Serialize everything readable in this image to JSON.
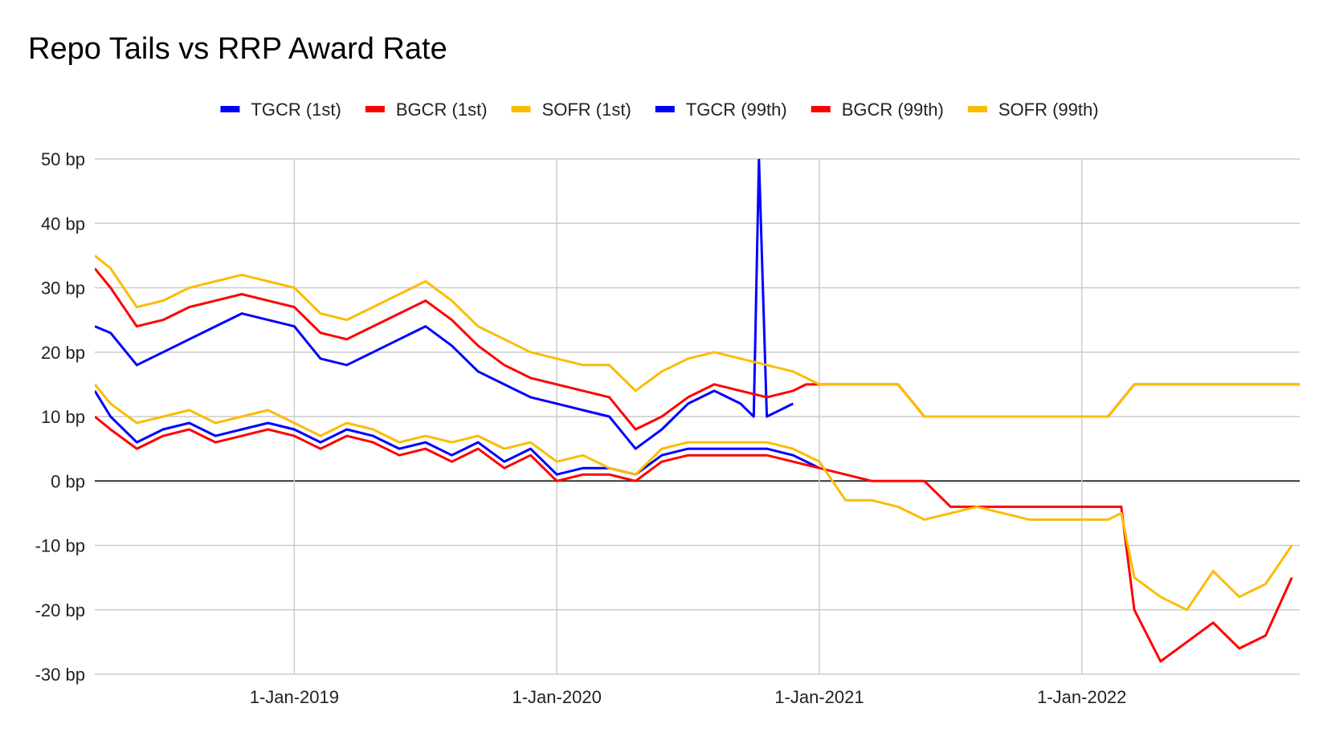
{
  "chart_data": {
    "type": "line",
    "title": "Repo Tails vs RRP Award Rate",
    "xlabel": "",
    "ylabel": "",
    "ylim": [
      -30,
      50
    ],
    "yticks": [
      -30,
      -20,
      -10,
      0,
      10,
      20,
      30,
      40,
      50
    ],
    "ytick_labels": [
      "-30 bp",
      "-20 bp",
      "-10 bp",
      "0 bp",
      "10 bp",
      "20 bp",
      "30 bp",
      "40 bp",
      "50 bp"
    ],
    "xlim": [
      2018.24,
      2022.83
    ],
    "xticks": [
      2019.0,
      2020.0,
      2021.0,
      2022.0
    ],
    "xtick_labels": [
      "1-Jan-2019",
      "1-Jan-2020",
      "1-Jan-2021",
      "1-Jan-2022"
    ],
    "grid": true,
    "legend_position": "top",
    "series": [
      {
        "name": "TGCR (1st)",
        "color": "#0000ff",
        "x": [
          2018.24,
          2018.3,
          2018.4,
          2018.5,
          2018.6,
          2018.7,
          2018.8,
          2018.9,
          2019.0,
          2019.1,
          2019.2,
          2019.3,
          2019.4,
          2019.5,
          2019.6,
          2019.7,
          2019.8,
          2019.9,
          2020.0,
          2020.1,
          2020.2,
          2020.3,
          2020.4,
          2020.5,
          2020.6,
          2020.7,
          2020.8,
          2020.9,
          2021.0
        ],
        "values": [
          14,
          10,
          6,
          8,
          9,
          7,
          8,
          9,
          8,
          6,
          8,
          7,
          5,
          6,
          4,
          6,
          3,
          5,
          1,
          2,
          2,
          1,
          4,
          5,
          5,
          5,
          5,
          4,
          2
        ]
      },
      {
        "name": "BGCR (1st)",
        "color": "#ff0000",
        "x": [
          2018.24,
          2018.3,
          2018.4,
          2018.5,
          2018.6,
          2018.7,
          2018.8,
          2018.9,
          2019.0,
          2019.1,
          2019.2,
          2019.3,
          2019.4,
          2019.5,
          2019.6,
          2019.7,
          2019.8,
          2019.9,
          2020.0,
          2020.1,
          2020.2,
          2020.3,
          2020.4,
          2020.5,
          2020.6,
          2020.7,
          2020.8,
          2020.9,
          2021.0,
          2021.1,
          2021.2,
          2021.3,
          2021.4,
          2021.5,
          2021.6,
          2021.7,
          2021.8,
          2021.9,
          2022.0,
          2022.1,
          2022.15,
          2022.2,
          2022.3,
          2022.4,
          2022.5,
          2022.6,
          2022.7,
          2022.8
        ],
        "values": [
          10,
          8,
          5,
          7,
          8,
          6,
          7,
          8,
          7,
          5,
          7,
          6,
          4,
          5,
          3,
          5,
          2,
          4,
          0,
          1,
          1,
          0,
          3,
          4,
          4,
          4,
          4,
          3,
          2,
          1,
          0,
          0,
          0,
          -4,
          -4,
          -4,
          -4,
          -4,
          -4,
          -4,
          -4,
          -20,
          -28,
          -25,
          -22,
          -26,
          -24,
          -15
        ]
      },
      {
        "name": "SOFR (1st)",
        "color": "#fbbc04",
        "x": [
          2018.24,
          2018.3,
          2018.4,
          2018.5,
          2018.6,
          2018.7,
          2018.8,
          2018.9,
          2019.0,
          2019.1,
          2019.2,
          2019.3,
          2019.4,
          2019.5,
          2019.6,
          2019.7,
          2019.8,
          2019.9,
          2020.0,
          2020.1,
          2020.2,
          2020.3,
          2020.4,
          2020.5,
          2020.6,
          2020.7,
          2020.8,
          2020.9,
          2021.0,
          2021.1,
          2021.2,
          2021.3,
          2021.4,
          2021.5,
          2021.6,
          2021.7,
          2021.8,
          2021.9,
          2022.0,
          2022.1,
          2022.15,
          2022.2,
          2022.3,
          2022.4,
          2022.5,
          2022.6,
          2022.7,
          2022.8
        ],
        "values": [
          15,
          12,
          9,
          10,
          11,
          9,
          10,
          11,
          9,
          7,
          9,
          8,
          6,
          7,
          6,
          7,
          5,
          6,
          3,
          4,
          2,
          1,
          5,
          6,
          6,
          6,
          6,
          5,
          3,
          -3,
          -3,
          -4,
          -6,
          -5,
          -4,
          -5,
          -6,
          -6,
          -6,
          -6,
          -5,
          -15,
          -18,
          -20,
          -14,
          -18,
          -16,
          -10
        ]
      },
      {
        "name": "TGCR (99th)",
        "color": "#0000ff",
        "x": [
          2018.24,
          2018.3,
          2018.4,
          2018.5,
          2018.6,
          2018.7,
          2018.8,
          2018.9,
          2019.0,
          2019.1,
          2019.2,
          2019.3,
          2019.4,
          2019.5,
          2019.6,
          2019.7,
          2019.8,
          2019.9,
          2020.0,
          2020.1,
          2020.2,
          2020.3,
          2020.4,
          2020.5,
          2020.6,
          2020.7,
          2020.75,
          2020.77,
          2020.8,
          2020.9
        ],
        "values": [
          24,
          23,
          18,
          20,
          22,
          24,
          26,
          25,
          24,
          19,
          18,
          20,
          22,
          24,
          21,
          17,
          15,
          13,
          12,
          11,
          10,
          5,
          8,
          12,
          14,
          12,
          10,
          50,
          10,
          12
        ]
      },
      {
        "name": "BGCR (99th)",
        "color": "#ff0000",
        "x": [
          2018.24,
          2018.3,
          2018.4,
          2018.5,
          2018.6,
          2018.7,
          2018.8,
          2018.9,
          2019.0,
          2019.1,
          2019.2,
          2019.3,
          2019.4,
          2019.5,
          2019.6,
          2019.7,
          2019.8,
          2019.9,
          2020.0,
          2020.1,
          2020.2,
          2020.3,
          2020.4,
          2020.5,
          2020.6,
          2020.7,
          2020.8,
          2020.9,
          2020.95,
          2021.0,
          2021.1,
          2021.2,
          2021.3,
          2021.4,
          2021.5,
          2021.6,
          2021.7,
          2021.8,
          2021.9,
          2022.0,
          2022.1,
          2022.2,
          2022.3,
          2022.4,
          2022.5,
          2022.6,
          2022.7,
          2022.83
        ],
        "values": [
          33,
          30,
          24,
          25,
          27,
          28,
          29,
          28,
          27,
          23,
          22,
          24,
          26,
          28,
          25,
          21,
          18,
          16,
          15,
          14,
          13,
          8,
          10,
          13,
          15,
          14,
          13,
          14,
          15,
          15,
          15,
          15,
          15,
          10,
          10,
          10,
          10,
          10,
          10,
          10,
          10,
          15,
          15,
          15,
          15,
          15,
          15,
          15
        ]
      },
      {
        "name": "SOFR (99th)",
        "color": "#fbbc04",
        "x": [
          2018.24,
          2018.3,
          2018.4,
          2018.5,
          2018.6,
          2018.7,
          2018.8,
          2018.9,
          2019.0,
          2019.1,
          2019.2,
          2019.3,
          2019.4,
          2019.5,
          2019.6,
          2019.7,
          2019.8,
          2019.9,
          2020.0,
          2020.1,
          2020.2,
          2020.3,
          2020.4,
          2020.5,
          2020.6,
          2020.7,
          2020.8,
          2020.9,
          2020.95,
          2021.0,
          2021.1,
          2021.2,
          2021.3,
          2021.4,
          2021.5,
          2021.6,
          2021.7,
          2021.8,
          2021.9,
          2022.0,
          2022.1,
          2022.2,
          2022.3,
          2022.4,
          2022.5,
          2022.6,
          2022.7,
          2022.83
        ],
        "values": [
          35,
          33,
          27,
          28,
          30,
          31,
          32,
          31,
          30,
          26,
          25,
          27,
          29,
          31,
          28,
          24,
          22,
          20,
          19,
          18,
          18,
          14,
          17,
          19,
          20,
          19,
          18,
          17,
          16,
          15,
          15,
          15,
          15,
          10,
          10,
          10,
          10,
          10,
          10,
          10,
          10,
          15,
          15,
          15,
          15,
          15,
          15,
          15
        ]
      }
    ]
  }
}
